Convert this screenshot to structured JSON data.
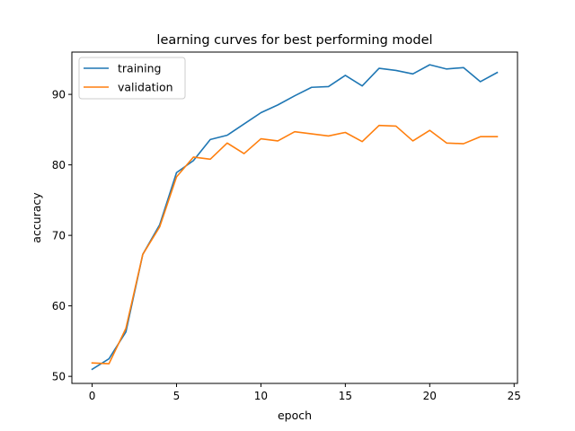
{
  "chart_data": {
    "type": "line",
    "title": "learning curves for best performing model",
    "xlabel": "epoch",
    "ylabel": "accuracy",
    "xlim": [
      -1.2,
      25.2
    ],
    "ylim": [
      49,
      96
    ],
    "xticks": [
      0,
      5,
      10,
      15,
      20,
      25
    ],
    "yticks": [
      50,
      60,
      70,
      80,
      90
    ],
    "legend_position": "top-left",
    "grid": false,
    "x": [
      0,
      1,
      2,
      3,
      4,
      5,
      6,
      7,
      8,
      9,
      10,
      11,
      12,
      13,
      14,
      15,
      16,
      17,
      18,
      19,
      20,
      21,
      22,
      23,
      24
    ],
    "series": [
      {
        "name": "training",
        "color": "#1f77b4",
        "values": [
          51.0,
          52.5,
          56.3,
          67.3,
          71.5,
          78.9,
          80.6,
          83.6,
          84.2,
          85.8,
          87.4,
          88.5,
          89.8,
          91.0,
          91.1,
          92.7,
          91.2,
          93.7,
          93.4,
          92.9,
          94.2,
          93.6,
          93.8,
          91.8,
          93.1
        ]
      },
      {
        "name": "validation",
        "color": "#ff7f0e",
        "values": [
          51.9,
          51.8,
          56.8,
          67.3,
          71.2,
          78.3,
          81.1,
          80.8,
          83.1,
          81.6,
          83.7,
          83.4,
          84.7,
          84.4,
          84.1,
          84.6,
          83.3,
          85.6,
          85.5,
          83.4,
          84.9,
          83.1,
          83.0,
          84.0,
          84.0
        ]
      }
    ]
  }
}
